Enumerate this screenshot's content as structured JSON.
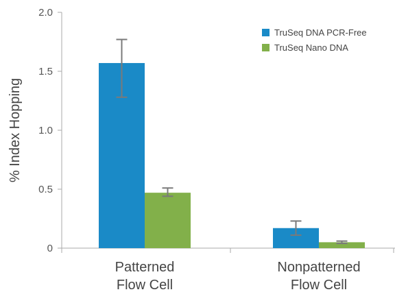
{
  "chart_data": {
    "type": "bar",
    "ylabel": "% Index Hopping",
    "ylim": [
      0,
      2.0
    ],
    "yticks": [
      "0",
      "0.5",
      "1.0",
      "1.5",
      "2.0"
    ],
    "ytick_values": [
      0,
      0.5,
      1.0,
      1.5,
      2.0
    ],
    "categories": [
      [
        "Patterned",
        "Flow Cell"
      ],
      [
        "Nonpatterned",
        "Flow Cell"
      ]
    ],
    "series": [
      {
        "name": "TruSeq DNA PCR-Free",
        "color": "#1a8ac7",
        "values": [
          1.57,
          0.17
        ],
        "error_low": [
          1.28,
          0.11
        ],
        "error_high": [
          1.77,
          0.23
        ]
      },
      {
        "name": "TruSeq Nano DNA",
        "color": "#82b04a",
        "values": [
          0.47,
          0.05
        ],
        "error_low": [
          0.44,
          0.04
        ],
        "error_high": [
          0.51,
          0.06
        ]
      }
    ],
    "legend_position": "top-right",
    "grid": false,
    "error_bar_color": "#7a7a7a"
  }
}
